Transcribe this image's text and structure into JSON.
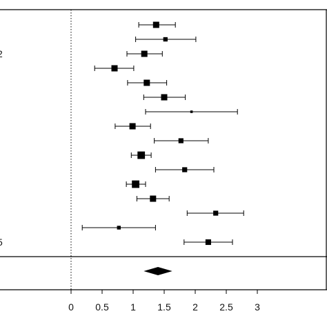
{
  "chart_data": {
    "type": "forest",
    "title": "",
    "xlabel": "",
    "ylabel": "",
    "xlim": [
      0,
      3
    ],
    "x_ticks": [
      0,
      0.5,
      1,
      1.5,
      2,
      2.5,
      3
    ],
    "x_tick_labels": [
      "0",
      "0.5",
      "1",
      "1.5",
      "2",
      "2.5",
      "3"
    ],
    "reference_line": {
      "x": 0,
      "style": "dotted"
    },
    "grid": false,
    "legend": "none",
    "studies": [
      {
        "label": "",
        "estimate": 1.37,
        "lower": 1.09,
        "upper": 1.68,
        "weight": 1.0
      },
      {
        "label": "",
        "estimate": 1.52,
        "lower": 1.04,
        "upper": 2.01,
        "weight": 0.7
      },
      {
        "label": "2",
        "estimate": 1.18,
        "lower": 0.9,
        "upper": 1.47,
        "weight": 1.0
      },
      {
        "label": "",
        "estimate": 0.7,
        "lower": 0.38,
        "upper": 1.01,
        "weight": 1.0
      },
      {
        "label": "",
        "estimate": 1.22,
        "lower": 0.91,
        "upper": 1.54,
        "weight": 1.0
      },
      {
        "label": "",
        "estimate": 1.5,
        "lower": 1.17,
        "upper": 1.84,
        "weight": 1.0
      },
      {
        "label": "",
        "estimate": 1.94,
        "lower": 1.2,
        "upper": 2.68,
        "weight": 0.4
      },
      {
        "label": "",
        "estimate": 0.99,
        "lower": 0.71,
        "upper": 1.28,
        "weight": 1.0
      },
      {
        "label": "",
        "estimate": 1.77,
        "lower": 1.34,
        "upper": 2.21,
        "weight": 0.8
      },
      {
        "label": "",
        "estimate": 1.13,
        "lower": 0.97,
        "upper": 1.29,
        "weight": 1.2
      },
      {
        "label": "",
        "estimate": 1.83,
        "lower": 1.36,
        "upper": 2.3,
        "weight": 0.8
      },
      {
        "label": "",
        "estimate": 1.04,
        "lower": 0.89,
        "upper": 1.2,
        "weight": 1.2
      },
      {
        "label": "",
        "estimate": 1.32,
        "lower": 1.06,
        "upper": 1.58,
        "weight": 1.0
      },
      {
        "label": "",
        "estimate": 2.33,
        "lower": 1.87,
        "upper": 2.78,
        "weight": 0.8
      },
      {
        "label": "",
        "estimate": 0.77,
        "lower": 0.18,
        "upper": 1.36,
        "weight": 0.6
      },
      {
        "label": "5",
        "estimate": 2.21,
        "lower": 1.82,
        "upper": 2.6,
        "weight": 0.9
      }
    ],
    "summary": {
      "estimate": 1.4,
      "lower": 1.17,
      "upper": 1.63
    }
  }
}
